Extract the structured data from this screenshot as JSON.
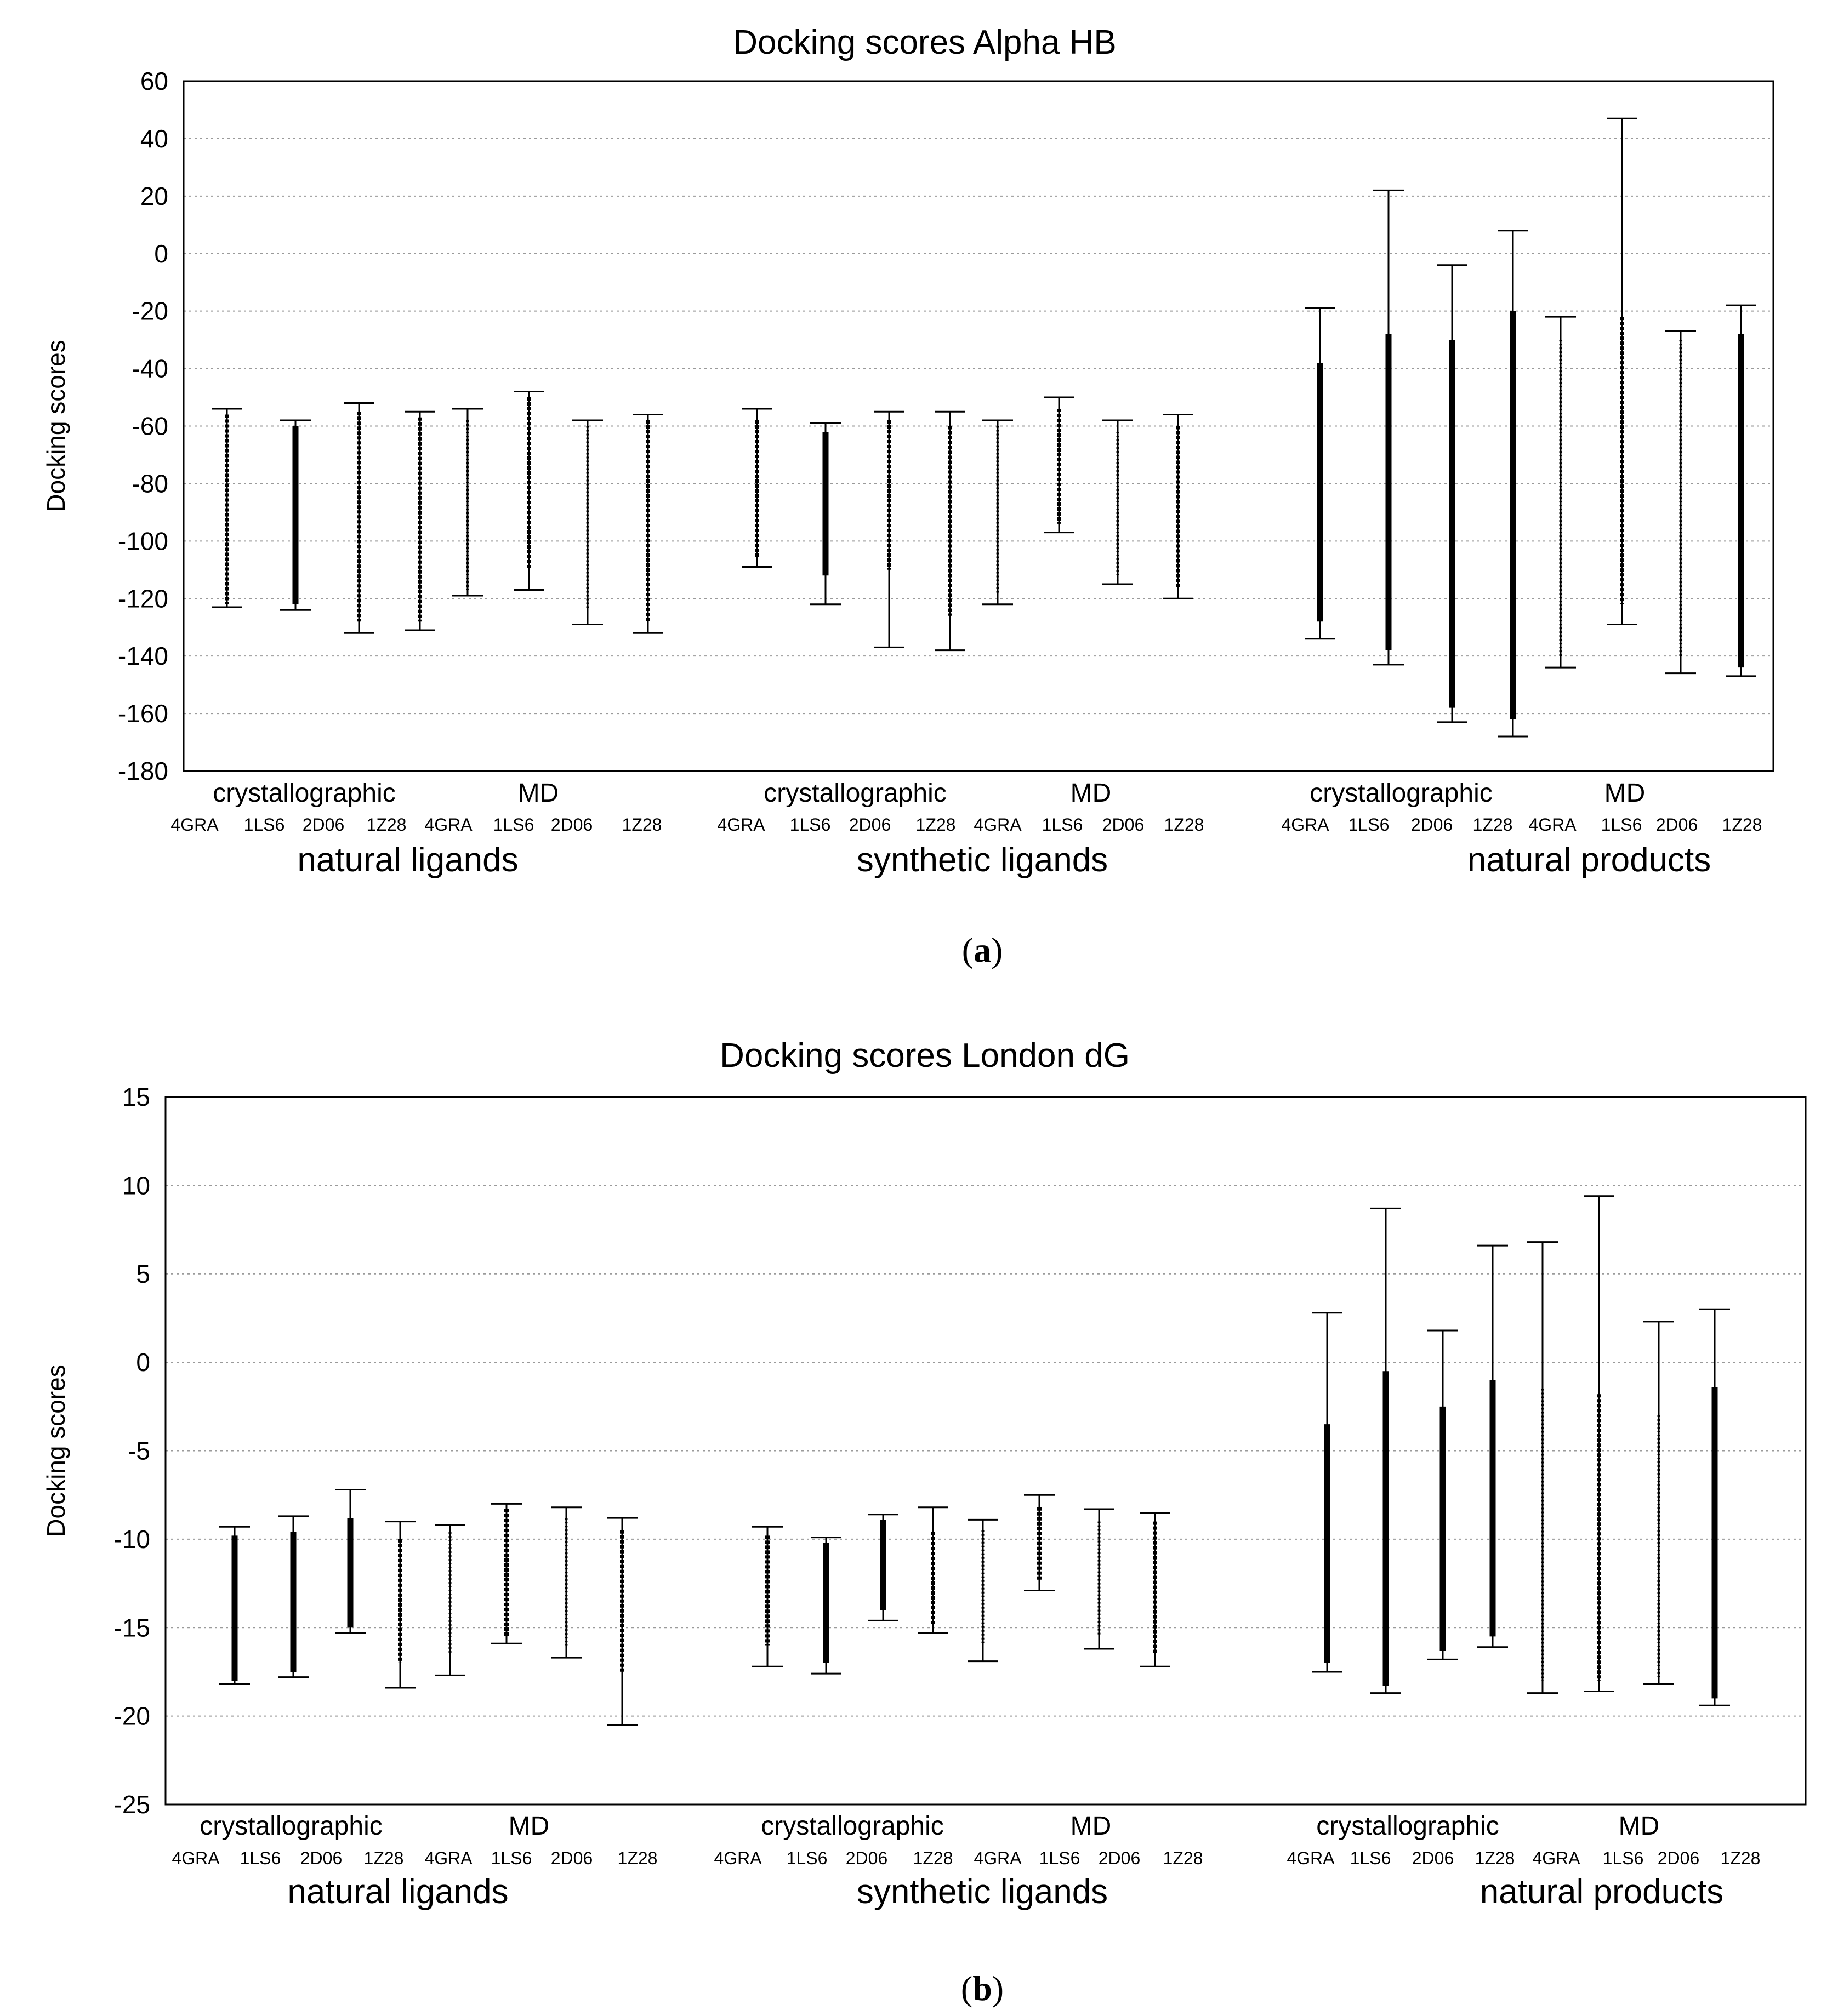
{
  "chart_data": [
    {
      "type": "range",
      "title": "Docking scores Alpha HB",
      "ylabel": "Docking scores",
      "ylim": [
        -180,
        60
      ],
      "yticks": [
        60,
        40,
        20,
        0,
        -20,
        -40,
        -60,
        -80,
        -100,
        -120,
        -140,
        -160,
        -180
      ],
      "grid": true,
      "set_labels": [
        "crystallographic",
        "MD"
      ],
      "pdb_labels": [
        "4GRA",
        "1LS6",
        "2D06",
        "1Z28"
      ],
      "groups": [
        {
          "name": "natural ligands",
          "ranges": [
            {
              "min": -123,
              "max": -54,
              "dense_min": -122,
              "dense_max": -56,
              "density": "medium"
            },
            {
              "min": -124,
              "max": -58,
              "dense_min": -122,
              "dense_max": -60,
              "density": "heavy"
            },
            {
              "min": -132,
              "max": -52,
              "dense_min": -128,
              "dense_max": -55,
              "density": "medium"
            },
            {
              "min": -131,
              "max": -55,
              "dense_min": -128,
              "dense_max": -57,
              "density": "medium"
            },
            {
              "min": -119,
              "max": -54,
              "dense_min": -117,
              "dense_max": -58,
              "density": "light"
            },
            {
              "min": -117,
              "max": -48,
              "dense_min": -110,
              "dense_max": -50,
              "density": "medium"
            },
            {
              "min": -129,
              "max": -58,
              "dense_min": -124,
              "dense_max": -60,
              "density": "light"
            },
            {
              "min": -132,
              "max": -56,
              "dense_min": -128,
              "dense_max": -58,
              "density": "medium"
            }
          ]
        },
        {
          "name": "synthetic ligands",
          "ranges": [
            {
              "min": -109,
              "max": -54,
              "dense_min": -106,
              "dense_max": -58,
              "density": "medium"
            },
            {
              "min": -122,
              "max": -59,
              "dense_min": -112,
              "dense_max": -62,
              "density": "heavy"
            },
            {
              "min": -137,
              "max": -55,
              "dense_min": -110,
              "dense_max": -58,
              "density": "medium"
            },
            {
              "min": -138,
              "max": -55,
              "dense_min": -126,
              "dense_max": -60,
              "density": "medium"
            },
            {
              "min": -122,
              "max": -58,
              "dense_min": -118,
              "dense_max": -60,
              "density": "light"
            },
            {
              "min": -97,
              "max": -50,
              "dense_min": -94,
              "dense_max": -54,
              "density": "medium"
            },
            {
              "min": -115,
              "max": -58,
              "dense_min": -112,
              "dense_max": -62,
              "density": "light"
            },
            {
              "min": -120,
              "max": -56,
              "dense_min": -116,
              "dense_max": -60,
              "density": "medium"
            }
          ]
        },
        {
          "name": "natural products",
          "ranges": [
            {
              "min": -134,
              "max": -19,
              "dense_min": -128,
              "dense_max": -38,
              "density": "heavy"
            },
            {
              "min": -143,
              "max": 22,
              "dense_min": -138,
              "dense_max": -28,
              "density": "heavy"
            },
            {
              "min": -163,
              "max": -4,
              "dense_min": -158,
              "dense_max": -30,
              "density": "heavy"
            },
            {
              "min": -168,
              "max": 8,
              "dense_min": -162,
              "dense_max": -20,
              "density": "heavy"
            },
            {
              "min": -144,
              "max": -22,
              "dense_min": -140,
              "dense_max": -30,
              "density": "light"
            },
            {
              "min": -129,
              "max": 47,
              "dense_min": -122,
              "dense_max": -22,
              "density": "medium"
            },
            {
              "min": -146,
              "max": -27,
              "dense_min": -140,
              "dense_max": -30,
              "density": "light"
            },
            {
              "min": -147,
              "max": -18,
              "dense_min": -144,
              "dense_max": -28,
              "density": "heavy"
            }
          ]
        }
      ]
    },
    {
      "type": "range",
      "title": "Docking scores London dG",
      "ylabel": "Docking scores",
      "ylim": [
        -25,
        15
      ],
      "yticks": [
        15,
        10,
        5,
        0,
        -5,
        -10,
        -15,
        -20,
        -25
      ],
      "grid": true,
      "set_labels": [
        "crystallographic",
        "MD"
      ],
      "pdb_labels": [
        "4GRA",
        "1LS6",
        "2D06",
        "1Z28"
      ],
      "groups": [
        {
          "name": "natural ligands",
          "ranges": [
            {
              "min": -18.2,
              "max": -9.3,
              "dense_min": -18.0,
              "dense_max": -9.8,
              "density": "heavy"
            },
            {
              "min": -17.8,
              "max": -8.7,
              "dense_min": -17.5,
              "dense_max": -9.6,
              "density": "heavy"
            },
            {
              "min": -15.3,
              "max": -7.2,
              "dense_min": -15.0,
              "dense_max": -8.8,
              "density": "heavy"
            },
            {
              "min": -18.4,
              "max": -9.0,
              "dense_min": -17.0,
              "dense_max": -10.0,
              "density": "medium"
            },
            {
              "min": -17.7,
              "max": -9.2,
              "dense_min": -16.5,
              "dense_max": -9.6,
              "density": "light"
            },
            {
              "min": -15.9,
              "max": -8.0,
              "dense_min": -15.5,
              "dense_max": -8.3,
              "density": "medium"
            },
            {
              "min": -16.7,
              "max": -8.2,
              "dense_min": -16.0,
              "dense_max": -8.8,
              "density": "light"
            },
            {
              "min": -20.5,
              "max": -8.8,
              "dense_min": -17.5,
              "dense_max": -9.5,
              "density": "medium"
            }
          ]
        },
        {
          "name": "synthetic ligands",
          "ranges": [
            {
              "min": -17.2,
              "max": -9.3,
              "dense_min": -16.0,
              "dense_max": -9.8,
              "density": "medium"
            },
            {
              "min": -17.6,
              "max": -9.9,
              "dense_min": -17.0,
              "dense_max": -10.2,
              "density": "heavy"
            },
            {
              "min": -14.6,
              "max": -8.6,
              "dense_min": -14.0,
              "dense_max": -8.9,
              "density": "heavy"
            },
            {
              "min": -15.3,
              "max": -8.2,
              "dense_min": -14.8,
              "dense_max": -9.6,
              "density": "medium"
            },
            {
              "min": -16.9,
              "max": -8.9,
              "dense_min": -16.0,
              "dense_max": -9.5,
              "density": "light"
            },
            {
              "min": -12.9,
              "max": -7.5,
              "dense_min": -12.3,
              "dense_max": -8.2,
              "density": "medium"
            },
            {
              "min": -16.2,
              "max": -8.3,
              "dense_min": -15.5,
              "dense_max": -9.0,
              "density": "light"
            },
            {
              "min": -17.2,
              "max": -8.5,
              "dense_min": -16.5,
              "dense_max": -9.0,
              "density": "medium"
            }
          ]
        },
        {
          "name": "natural products",
          "ranges": [
            {
              "min": -17.5,
              "max": 2.8,
              "dense_min": -17.0,
              "dense_max": -3.5,
              "density": "heavy"
            },
            {
              "min": -18.7,
              "max": 8.7,
              "dense_min": -18.3,
              "dense_max": -0.5,
              "density": "heavy"
            },
            {
              "min": -16.8,
              "max": 1.8,
              "dense_min": -16.3,
              "dense_max": -2.5,
              "density": "heavy"
            },
            {
              "min": -16.1,
              "max": 6.6,
              "dense_min": -15.5,
              "dense_max": -1.0,
              "density": "heavy"
            },
            {
              "min": -18.7,
              "max": 6.8,
              "dense_min": -18.0,
              "dense_max": -1.5,
              "density": "light"
            },
            {
              "min": -18.6,
              "max": 9.4,
              "dense_min": -18.0,
              "dense_max": -1.8,
              "density": "medium"
            },
            {
              "min": -18.2,
              "max": 2.3,
              "dense_min": -17.8,
              "dense_max": -3.0,
              "density": "light"
            },
            {
              "min": -19.4,
              "max": 3.0,
              "dense_min": -19.0,
              "dense_max": -1.4,
              "density": "heavy"
            }
          ]
        }
      ]
    }
  ],
  "panel_labels": [
    "a",
    "b"
  ],
  "panel_parens": [
    "(",
    ")"
  ]
}
